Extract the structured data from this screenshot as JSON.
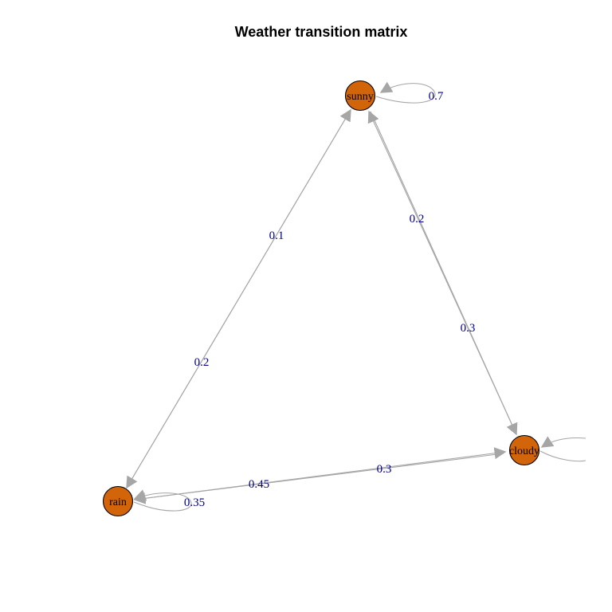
{
  "title": "Weather transition matrix",
  "colors": {
    "node_fill": "#d2650a",
    "edge": "#a6a6a6",
    "edge_label": "#00008b"
  },
  "nodes": [
    {
      "id": "sunny",
      "label": "sunny"
    },
    {
      "id": "cloudy",
      "label": "cloudy"
    },
    {
      "id": "rain",
      "label": "rain"
    }
  ],
  "edges": [
    {
      "from": "sunny",
      "to": "sunny",
      "label": "0.7"
    },
    {
      "from": "sunny",
      "to": "cloudy",
      "label": "0.3"
    },
    {
      "from": "cloudy",
      "to": "sunny",
      "label": "0.2"
    },
    {
      "from": "sunny",
      "to": "rain",
      "label": "0.2"
    },
    {
      "from": "rain",
      "to": "sunny",
      "label": "0.1"
    },
    {
      "from": "cloudy",
      "to": "rain",
      "label": "0.45"
    },
    {
      "from": "rain",
      "to": "cloudy",
      "label": "0.3"
    },
    {
      "from": "rain",
      "to": "rain",
      "label": "0.35"
    },
    {
      "from": "cloudy",
      "to": "cloudy",
      "label": ""
    }
  ]
}
